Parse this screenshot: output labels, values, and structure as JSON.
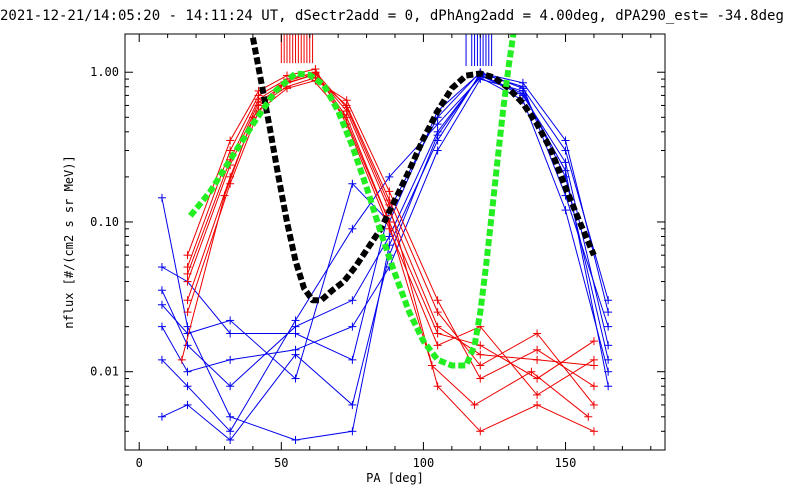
{
  "chart_data": {
    "type": "line",
    "title": "2021-12-21/14:05:20 - 14:11:24 UT, dSectr2add = 0, dPhAng2add = 4.00deg, dPA290_est= -34.8deg",
    "xlabel": "PA [deg]",
    "ylabel": "nflux [#/(cm2 s sr MeV)]",
    "xlim": [
      -5,
      185
    ],
    "ylim": [
      0.003,
      1.8
    ],
    "y_scale": "log",
    "grid": false,
    "x_ticks": [
      0,
      50,
      100,
      150
    ],
    "x_tick_labels": [
      "0",
      "50",
      "100",
      "150"
    ],
    "y_ticks": [
      0.01,
      0.1,
      1.0
    ],
    "y_tick_labels": [
      "0.01",
      "0.10",
      "1.00"
    ],
    "colors": {
      "red": "#ee0000",
      "blue": "#0000ee",
      "green": "#22ee22",
      "black": "#000000"
    },
    "red_spikes_x": [
      50,
      51,
      52,
      53,
      54,
      55,
      56,
      57,
      58,
      59,
      60,
      61
    ],
    "blue_spikes_x": [
      115,
      117,
      118,
      119,
      120,
      121,
      122,
      123,
      124
    ],
    "red_series": [
      {
        "x": [
          17,
          32,
          42,
          52,
          62,
          73,
          88,
          105,
          120,
          140,
          160
        ],
        "y": [
          0.04,
          0.24,
          0.63,
          0.85,
          0.97,
          0.55,
          0.12,
          0.02,
          0.013,
          0.012,
          0.011
        ]
      },
      {
        "x": [
          17,
          32,
          42,
          52,
          62,
          73,
          88,
          105,
          120,
          140,
          160
        ],
        "y": [
          0.05,
          0.3,
          0.7,
          0.9,
          0.99,
          0.5,
          0.1,
          0.018,
          0.015,
          0.009,
          0.016
        ]
      },
      {
        "x": [
          17,
          32,
          42,
          52,
          62,
          73,
          88,
          105,
          120,
          140,
          160
        ],
        "y": [
          0.03,
          0.2,
          0.6,
          0.8,
          0.92,
          0.6,
          0.14,
          0.025,
          0.011,
          0.018,
          0.006
        ]
      },
      {
        "x": [
          17,
          32,
          42,
          52,
          62,
          73,
          88,
          105,
          120,
          140,
          160
        ],
        "y": [
          0.06,
          0.35,
          0.75,
          0.95,
          1.05,
          0.45,
          0.09,
          0.015,
          0.02,
          0.007,
          0.012
        ]
      },
      {
        "x": [
          17,
          32,
          42,
          52,
          62,
          73,
          88,
          105,
          120,
          140,
          160
        ],
        "y": [
          0.025,
          0.18,
          0.55,
          0.78,
          0.88,
          0.65,
          0.16,
          0.03,
          0.009,
          0.014,
          0.008
        ]
      },
      {
        "x": [
          15,
          30,
          40,
          50,
          60,
          72,
          87,
          103,
          118,
          138,
          158
        ],
        "y": [
          0.012,
          0.15,
          0.5,
          0.82,
          0.94,
          0.52,
          0.11,
          0.011,
          0.006,
          0.01,
          0.005
        ]
      },
      {
        "x": [
          17,
          32,
          42,
          52,
          62,
          73,
          88,
          105,
          120,
          140,
          160
        ],
        "y": [
          0.045,
          0.26,
          0.66,
          0.87,
          1.0,
          0.58,
          0.13,
          0.008,
          0.004,
          0.006,
          0.004
        ]
      }
    ],
    "blue_series": [
      {
        "x": [
          8,
          17,
          32,
          55,
          75,
          88,
          105,
          120,
          135,
          150,
          165
        ],
        "y": [
          0.02,
          0.01,
          0.012,
          0.014,
          0.02,
          0.05,
          0.3,
          0.9,
          0.75,
          0.2,
          0.012
        ]
      },
      {
        "x": [
          8,
          17,
          32,
          55,
          75,
          88,
          105,
          120,
          135,
          150,
          165
        ],
        "y": [
          0.035,
          0.015,
          0.008,
          0.02,
          0.03,
          0.08,
          0.4,
          0.95,
          0.7,
          0.25,
          0.015
        ]
      },
      {
        "x": [
          8,
          17,
          32,
          55,
          75,
          88,
          105,
          120,
          135,
          150,
          165
        ],
        "y": [
          0.145,
          0.02,
          0.005,
          0.0035,
          0.004,
          0.07,
          0.35,
          0.98,
          0.8,
          0.15,
          0.02
        ]
      },
      {
        "x": [
          8,
          17,
          32,
          55,
          75,
          88,
          105,
          120,
          135,
          150,
          165
        ],
        "y": [
          0.05,
          0.04,
          0.018,
          0.018,
          0.012,
          0.12,
          0.5,
          1.0,
          0.78,
          0.3,
          0.03
        ]
      },
      {
        "x": [
          8,
          17,
          32,
          55,
          75,
          88,
          105,
          120,
          135,
          150,
          165
        ],
        "y": [
          0.012,
          0.008,
          0.004,
          0.022,
          0.09,
          0.2,
          0.45,
          0.92,
          0.65,
          0.12,
          0.01
        ]
      },
      {
        "x": [
          8,
          17,
          32,
          55,
          75,
          88,
          105,
          120,
          135,
          150,
          165
        ],
        "y": [
          0.005,
          0.006,
          0.0035,
          0.013,
          0.006,
          0.06,
          0.38,
          0.96,
          0.72,
          0.22,
          0.008
        ]
      },
      {
        "x": [
          8,
          17,
          32,
          55,
          75,
          88,
          105,
          120,
          135,
          150,
          165
        ],
        "y": [
          0.028,
          0.018,
          0.022,
          0.009,
          0.18,
          0.1,
          0.55,
          0.99,
          0.85,
          0.35,
          0.025
        ]
      }
    ],
    "green_curve": {
      "x": [
        18,
        25,
        32,
        40,
        48,
        55,
        60,
        65,
        70,
        75,
        80,
        85,
        90,
        95,
        100,
        105,
        110,
        115,
        118,
        120,
        122,
        124,
        126,
        128,
        130,
        132
      ],
      "y": [
        0.11,
        0.16,
        0.26,
        0.45,
        0.75,
        0.98,
        0.96,
        0.82,
        0.55,
        0.32,
        0.17,
        0.085,
        0.045,
        0.025,
        0.016,
        0.012,
        0.011,
        0.011,
        0.015,
        0.025,
        0.05,
        0.11,
        0.25,
        0.55,
        1.1,
        2.0
      ]
    },
    "black_curve": {
      "x": [
        40,
        43,
        46,
        49,
        52,
        55,
        58,
        61,
        64,
        68,
        72,
        76,
        80,
        85,
        90,
        95,
        100,
        105,
        110,
        115,
        120,
        125,
        130,
        135,
        140,
        145,
        150,
        155,
        160
      ],
      "y": [
        1.7,
        0.85,
        0.42,
        0.2,
        0.1,
        0.055,
        0.036,
        0.03,
        0.03,
        0.035,
        0.04,
        0.05,
        0.065,
        0.09,
        0.14,
        0.22,
        0.36,
        0.55,
        0.78,
        0.95,
        0.98,
        0.92,
        0.78,
        0.62,
        0.45,
        0.3,
        0.17,
        0.1,
        0.06
      ]
    }
  }
}
